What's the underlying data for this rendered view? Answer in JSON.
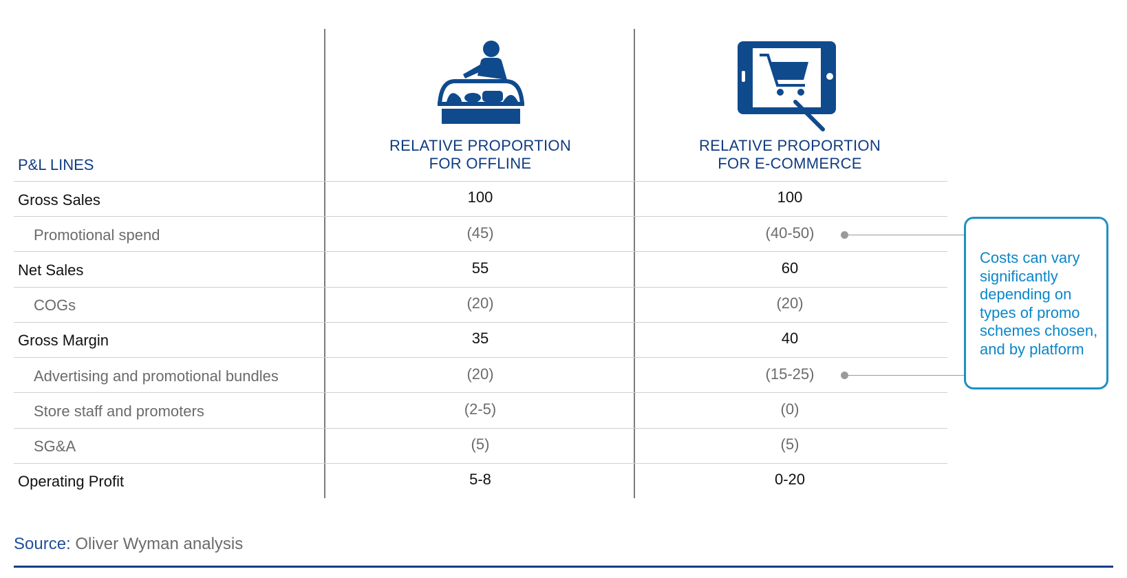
{
  "header": {
    "pl_label": "P&L LINES",
    "offline": {
      "line1": "RELATIVE PROPORTION",
      "line2": "FOR OFFLINE",
      "icon": "shop-counter-icon"
    },
    "ecommerce": {
      "line1": "RELATIVE PROPORTION",
      "line2": "FOR E-COMMERCE",
      "icon": "tablet-shopping-cart-icon"
    }
  },
  "rows": [
    {
      "label": "Gross Sales",
      "offline": "100",
      "ecommerce": "100",
      "kind": "main"
    },
    {
      "label": "Promotional spend",
      "offline": "(45)",
      "ecommerce": "(40-50)",
      "kind": "sub"
    },
    {
      "label": "Net Sales",
      "offline": "55",
      "ecommerce": "60",
      "kind": "main"
    },
    {
      "label": "COGs",
      "offline": "(20)",
      "ecommerce": "(20)",
      "kind": "sub"
    },
    {
      "label": "Gross Margin",
      "offline": "35",
      "ecommerce": "40",
      "kind": "main"
    },
    {
      "label": "Advertising and promotional bundles",
      "offline": "(20)",
      "ecommerce": "(15-25)",
      "kind": "sub"
    },
    {
      "label": "Store staff and promoters",
      "offline": "(2-5)",
      "ecommerce": "(0)",
      "kind": "sub"
    },
    {
      "label": "SG&A",
      "offline": "(5)",
      "ecommerce": "(5)",
      "kind": "sub"
    },
    {
      "label": "Operating Profit",
      "offline": "5-8",
      "ecommerce": "0-20",
      "kind": "main"
    }
  ],
  "callout": {
    "lines": [
      "Costs can vary",
      "significantly",
      "depending on",
      "types of promo",
      "schemes chosen,",
      "and by platform"
    ]
  },
  "source": {
    "label": "Source:",
    "text": " Oliver Wyman analysis"
  },
  "colors": {
    "navy": "#0f3b82",
    "callout_blue": "#1e8fc4",
    "icon_blue": "#0f4a8c"
  }
}
